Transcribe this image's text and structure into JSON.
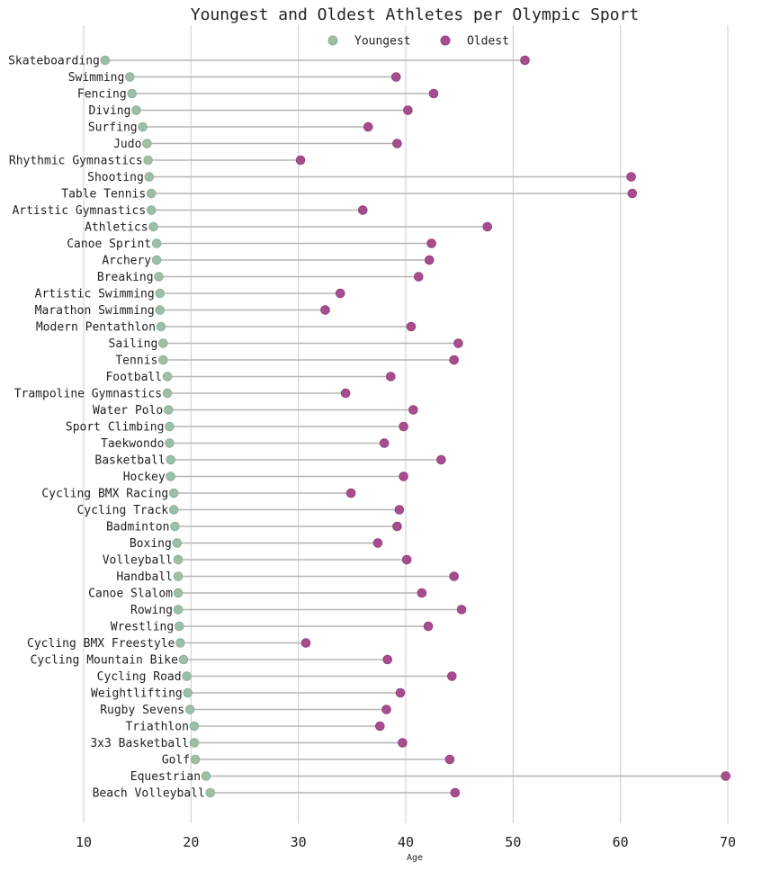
{
  "chart_data": {
    "type": "dumbbell",
    "title": "Youngest and Oldest Athletes per Olympic Sport",
    "xlabel": "Age",
    "ylabel": "",
    "xlim": [
      7.5,
      72
    ],
    "x_ticks": [
      10,
      20,
      30,
      40,
      50,
      60,
      70
    ],
    "grid": "vertical",
    "legend_position": "top-center",
    "colors": {
      "youngest": "#9dbea9",
      "oldest": "#a74d8d",
      "connector": "#b5b5b5",
      "grid": "#cccccc"
    },
    "series": [
      {
        "name": "Youngest",
        "key": "youngest"
      },
      {
        "name": "Oldest",
        "key": "oldest"
      }
    ],
    "categories": [
      "Skateboarding",
      "Swimming",
      "Fencing",
      "Diving",
      "Surfing",
      "Judo",
      "Rhythmic Gymnastics",
      "Shooting",
      "Table Tennis",
      "Artistic Gymnastics",
      "Athletics",
      "Canoe Sprint",
      "Archery",
      "Breaking",
      "Artistic Swimming",
      "Marathon Swimming",
      "Modern Pentathlon",
      "Sailing",
      "Tennis",
      "Football",
      "Trampoline Gymnastics",
      "Water Polo",
      "Sport Climbing",
      "Taekwondo",
      "Basketball",
      "Hockey",
      "Cycling BMX Racing",
      "Cycling Track",
      "Badminton",
      "Boxing",
      "Volleyball",
      "Handball",
      "Canoe Slalom",
      "Rowing",
      "Wrestling",
      "Cycling BMX Freestyle",
      "Cycling Mountain Bike",
      "Cycling Road",
      "Weightlifting",
      "Rugby Sevens",
      "Triathlon",
      "3x3 Basketball",
      "Golf",
      "Equestrian",
      "Beach Volleyball"
    ],
    "youngest": [
      12.0,
      14.3,
      14.5,
      14.9,
      15.5,
      15.9,
      16.0,
      16.1,
      16.3,
      16.3,
      16.5,
      16.8,
      16.8,
      17.0,
      17.1,
      17.1,
      17.2,
      17.4,
      17.4,
      17.8,
      17.8,
      17.9,
      18.0,
      18.0,
      18.1,
      18.1,
      18.4,
      18.4,
      18.5,
      18.7,
      18.8,
      18.8,
      18.8,
      18.8,
      18.9,
      19.0,
      19.3,
      19.6,
      19.7,
      19.9,
      20.3,
      20.3,
      20.4,
      21.4,
      21.8
    ],
    "oldest": [
      51.1,
      39.1,
      42.6,
      40.2,
      36.5,
      39.2,
      30.2,
      61.0,
      61.1,
      36.0,
      47.6,
      42.4,
      42.2,
      41.2,
      33.9,
      32.5,
      40.5,
      44.9,
      44.5,
      38.6,
      34.4,
      40.7,
      39.8,
      38.0,
      43.3,
      39.8,
      34.9,
      39.4,
      39.2,
      37.4,
      40.1,
      44.5,
      41.5,
      45.2,
      42.1,
      30.7,
      38.3,
      44.3,
      39.5,
      38.2,
      37.6,
      39.7,
      44.1,
      69.8,
      44.6
    ]
  }
}
